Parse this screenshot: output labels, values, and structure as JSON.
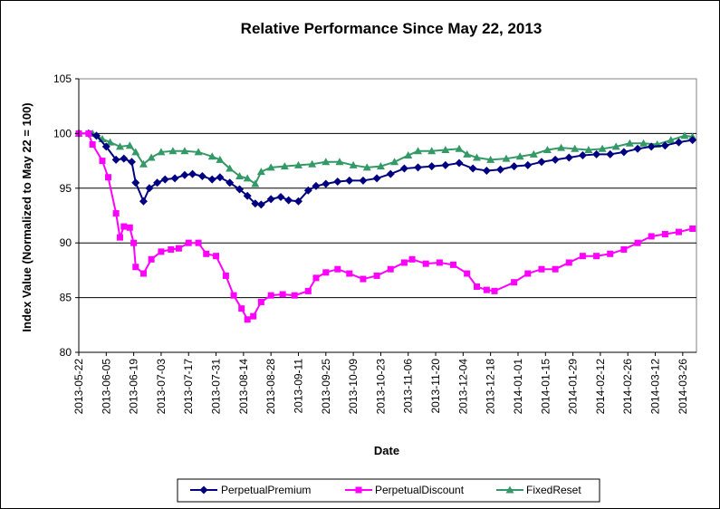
{
  "chart_data": {
    "type": "line",
    "title": "Relative Performance Since May 22, 2013",
    "xlabel": "Date",
    "ylabel": "Index Value (Normalized to May 22 = 100)",
    "ylim": [
      80,
      105
    ],
    "yticks": [
      80,
      85,
      90,
      95,
      100,
      105
    ],
    "xticks": [
      "2013-05-22",
      "2013-06-05",
      "2013-06-19",
      "2013-07-03",
      "2013-07-17",
      "2013-07-31",
      "2013-08-14",
      "2013-08-28",
      "2013-09-11",
      "2013-09-25",
      "2013-10-09",
      "2013-10-23",
      "2013-11-06",
      "2013-11-20",
      "2013-12-04",
      "2013-12-18",
      "2014-01-01",
      "2014-01-15",
      "2014-01-29",
      "2014-02-12",
      "2014-02-26",
      "2014-03-12",
      "2014-03-26"
    ],
    "xlim": [
      "2013-05-22",
      "2014-04-02"
    ],
    "grid": "horizontal",
    "legend_position": "bottom",
    "series": [
      {
        "name": "PerpetualPremium",
        "color": "#000080",
        "marker": "diamond",
        "points": [
          [
            "2013-05-22",
            100
          ],
          [
            "2013-05-27",
            100
          ],
          [
            "2013-05-31",
            99.8
          ],
          [
            "2013-06-05",
            98.8
          ],
          [
            "2013-06-10",
            97.6
          ],
          [
            "2013-06-14",
            97.7
          ],
          [
            "2013-06-18",
            97.4
          ],
          [
            "2013-06-20",
            95.5
          ],
          [
            "2013-06-24",
            93.8
          ],
          [
            "2013-06-27",
            95.0
          ],
          [
            "2013-07-01",
            95.5
          ],
          [
            "2013-07-05",
            95.8
          ],
          [
            "2013-07-10",
            95.9
          ],
          [
            "2013-07-15",
            96.2
          ],
          [
            "2013-07-19",
            96.3
          ],
          [
            "2013-07-24",
            96.1
          ],
          [
            "2013-07-29",
            95.8
          ],
          [
            "2013-08-02",
            96.0
          ],
          [
            "2013-08-07",
            95.5
          ],
          [
            "2013-08-12",
            94.9
          ],
          [
            "2013-08-16",
            94.3
          ],
          [
            "2013-08-20",
            93.6
          ],
          [
            "2013-08-23",
            93.5
          ],
          [
            "2013-08-28",
            94.0
          ],
          [
            "2013-09-02",
            94.2
          ],
          [
            "2013-09-06",
            93.9
          ],
          [
            "2013-09-11",
            93.8
          ],
          [
            "2013-09-16",
            94.8
          ],
          [
            "2013-09-20",
            95.2
          ],
          [
            "2013-09-25",
            95.4
          ],
          [
            "2013-10-01",
            95.6
          ],
          [
            "2013-10-07",
            95.7
          ],
          [
            "2013-10-14",
            95.7
          ],
          [
            "2013-10-21",
            95.9
          ],
          [
            "2013-10-28",
            96.3
          ],
          [
            "2013-11-04",
            96.8
          ],
          [
            "2013-11-11",
            96.9
          ],
          [
            "2013-11-18",
            97.0
          ],
          [
            "2013-11-25",
            97.1
          ],
          [
            "2013-12-02",
            97.3
          ],
          [
            "2013-12-09",
            96.8
          ],
          [
            "2013-12-16",
            96.6
          ],
          [
            "2013-12-23",
            96.7
          ],
          [
            "2013-12-30",
            97.0
          ],
          [
            "2014-01-06",
            97.1
          ],
          [
            "2014-01-13",
            97.4
          ],
          [
            "2014-01-20",
            97.6
          ],
          [
            "2014-01-27",
            97.8
          ],
          [
            "2014-02-03",
            98.0
          ],
          [
            "2014-02-10",
            98.1
          ],
          [
            "2014-02-17",
            98.1
          ],
          [
            "2014-02-24",
            98.3
          ],
          [
            "2014-03-03",
            98.6
          ],
          [
            "2014-03-10",
            98.8
          ],
          [
            "2014-03-17",
            98.9
          ],
          [
            "2014-03-24",
            99.2
          ],
          [
            "2014-03-31",
            99.4
          ]
        ]
      },
      {
        "name": "PerpetualDiscount",
        "color": "#FF00FF",
        "marker": "square",
        "points": [
          [
            "2013-05-22",
            100
          ],
          [
            "2013-05-27",
            100
          ],
          [
            "2013-05-29",
            99.0
          ],
          [
            "2013-06-03",
            97.5
          ],
          [
            "2013-06-06",
            96.0
          ],
          [
            "2013-06-10",
            92.7
          ],
          [
            "2013-06-12",
            90.5
          ],
          [
            "2013-06-14",
            91.5
          ],
          [
            "2013-06-17",
            91.4
          ],
          [
            "2013-06-19",
            90.0
          ],
          [
            "2013-06-20",
            87.8
          ],
          [
            "2013-06-24",
            87.2
          ],
          [
            "2013-06-28",
            88.5
          ],
          [
            "2013-07-03",
            89.2
          ],
          [
            "2013-07-08",
            89.4
          ],
          [
            "2013-07-12",
            89.5
          ],
          [
            "2013-07-17",
            90.0
          ],
          [
            "2013-07-22",
            90.0
          ],
          [
            "2013-07-26",
            89.0
          ],
          [
            "2013-07-31",
            88.8
          ],
          [
            "2013-08-05",
            87.0
          ],
          [
            "2013-08-09",
            85.2
          ],
          [
            "2013-08-13",
            84.0
          ],
          [
            "2013-08-16",
            83.0
          ],
          [
            "2013-08-19",
            83.3
          ],
          [
            "2013-08-23",
            84.6
          ],
          [
            "2013-08-28",
            85.2
          ],
          [
            "2013-09-03",
            85.3
          ],
          [
            "2013-09-09",
            85.2
          ],
          [
            "2013-09-16",
            85.6
          ],
          [
            "2013-09-20",
            86.8
          ],
          [
            "2013-09-25",
            87.3
          ],
          [
            "2013-10-01",
            87.6
          ],
          [
            "2013-10-07",
            87.2
          ],
          [
            "2013-10-14",
            86.7
          ],
          [
            "2013-10-21",
            87.0
          ],
          [
            "2013-10-28",
            87.6
          ],
          [
            "2013-11-04",
            88.2
          ],
          [
            "2013-11-08",
            88.5
          ],
          [
            "2013-11-15",
            88.1
          ],
          [
            "2013-11-22",
            88.2
          ],
          [
            "2013-11-29",
            88.0
          ],
          [
            "2013-12-06",
            87.2
          ],
          [
            "2013-12-11",
            86.0
          ],
          [
            "2013-12-16",
            85.7
          ],
          [
            "2013-12-20",
            85.6
          ],
          [
            "2013-12-30",
            86.4
          ],
          [
            "2014-01-06",
            87.2
          ],
          [
            "2014-01-13",
            87.6
          ],
          [
            "2014-01-20",
            87.6
          ],
          [
            "2014-01-27",
            88.2
          ],
          [
            "2014-02-03",
            88.8
          ],
          [
            "2014-02-10",
            88.8
          ],
          [
            "2014-02-17",
            89.0
          ],
          [
            "2014-02-24",
            89.4
          ],
          [
            "2014-03-03",
            90.0
          ],
          [
            "2014-03-10",
            90.6
          ],
          [
            "2014-03-17",
            90.8
          ],
          [
            "2014-03-24",
            91.0
          ],
          [
            "2014-03-31",
            91.3
          ]
        ]
      },
      {
        "name": "FixedReset",
        "color": "#339966",
        "marker": "triangle",
        "points": [
          [
            "2013-05-22",
            100
          ],
          [
            "2013-05-29",
            100
          ],
          [
            "2013-06-03",
            99.5
          ],
          [
            "2013-06-07",
            99.2
          ],
          [
            "2013-06-12",
            98.8
          ],
          [
            "2013-06-17",
            98.9
          ],
          [
            "2013-06-20",
            98.3
          ],
          [
            "2013-06-24",
            97.2
          ],
          [
            "2013-06-28",
            97.8
          ],
          [
            "2013-07-03",
            98.3
          ],
          [
            "2013-07-09",
            98.4
          ],
          [
            "2013-07-15",
            98.4
          ],
          [
            "2013-07-22",
            98.3
          ],
          [
            "2013-07-29",
            97.9
          ],
          [
            "2013-08-02",
            97.6
          ],
          [
            "2013-08-07",
            96.8
          ],
          [
            "2013-08-12",
            96.1
          ],
          [
            "2013-08-16",
            95.9
          ],
          [
            "2013-08-20",
            95.4
          ],
          [
            "2013-08-23",
            96.5
          ],
          [
            "2013-08-28",
            96.9
          ],
          [
            "2013-09-04",
            97.0
          ],
          [
            "2013-09-11",
            97.1
          ],
          [
            "2013-09-18",
            97.2
          ],
          [
            "2013-09-25",
            97.4
          ],
          [
            "2013-10-02",
            97.4
          ],
          [
            "2013-10-09",
            97.1
          ],
          [
            "2013-10-16",
            96.9
          ],
          [
            "2013-10-23",
            97.0
          ],
          [
            "2013-10-30",
            97.4
          ],
          [
            "2013-11-06",
            98.0
          ],
          [
            "2013-11-11",
            98.4
          ],
          [
            "2013-11-18",
            98.4
          ],
          [
            "2013-11-25",
            98.5
          ],
          [
            "2013-12-02",
            98.6
          ],
          [
            "2013-12-06",
            98.1
          ],
          [
            "2013-12-11",
            97.8
          ],
          [
            "2013-12-18",
            97.6
          ],
          [
            "2013-12-26",
            97.7
          ],
          [
            "2014-01-02",
            97.9
          ],
          [
            "2014-01-09",
            98.1
          ],
          [
            "2014-01-16",
            98.5
          ],
          [
            "2014-01-23",
            98.7
          ],
          [
            "2014-01-30",
            98.6
          ],
          [
            "2014-02-06",
            98.5
          ],
          [
            "2014-02-13",
            98.6
          ],
          [
            "2014-02-20",
            98.8
          ],
          [
            "2014-02-27",
            99.1
          ],
          [
            "2014-03-06",
            99.1
          ],
          [
            "2014-03-13",
            99.0
          ],
          [
            "2014-03-20",
            99.4
          ],
          [
            "2014-03-27",
            99.8
          ],
          [
            "2014-03-31",
            99.7
          ]
        ]
      }
    ]
  }
}
